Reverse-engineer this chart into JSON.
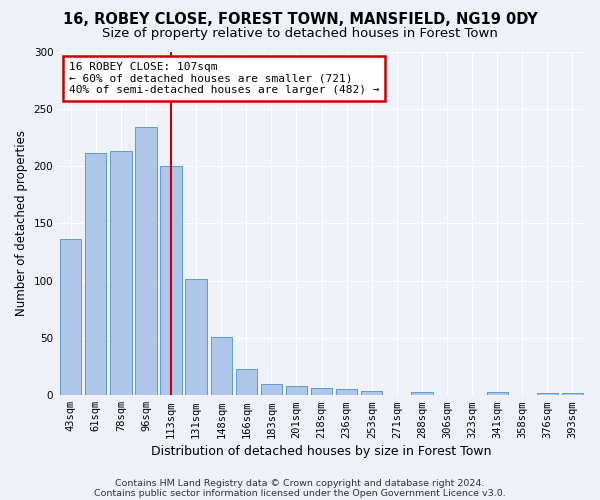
{
  "title1": "16, ROBEY CLOSE, FOREST TOWN, MANSFIELD, NG19 0DY",
  "title2": "Size of property relative to detached houses in Forest Town",
  "xlabel": "Distribution of detached houses by size in Forest Town",
  "ylabel": "Number of detached properties",
  "footnote1": "Contains HM Land Registry data © Crown copyright and database right 2024.",
  "footnote2": "Contains public sector information licensed under the Open Government Licence v3.0.",
  "categories": [
    "43sqm",
    "61sqm",
    "78sqm",
    "96sqm",
    "113sqm",
    "131sqm",
    "148sqm",
    "166sqm",
    "183sqm",
    "201sqm",
    "218sqm",
    "236sqm",
    "253sqm",
    "271sqm",
    "288sqm",
    "306sqm",
    "323sqm",
    "341sqm",
    "358sqm",
    "376sqm",
    "393sqm"
  ],
  "values": [
    136,
    211,
    213,
    234,
    200,
    101,
    51,
    23,
    10,
    8,
    6,
    5,
    4,
    0,
    3,
    0,
    0,
    3,
    0,
    2,
    2
  ],
  "bar_color": "#aec6e8",
  "bar_edge_color": "#5b9bd5",
  "red_line_index": 4,
  "annotation_line1": "16 ROBEY CLOSE: 107sqm",
  "annotation_line2": "← 60% of detached houses are smaller (721)",
  "annotation_line3": "40% of semi-detached houses are larger (482) →",
  "annotation_box_color": "#ffffff",
  "annotation_box_edge": "#cc0000",
  "ylim": [
    0,
    300
  ],
  "yticks": [
    0,
    50,
    100,
    150,
    200,
    250,
    300
  ],
  "background_color": "#eef2f8",
  "grid_color": "#ffffff",
  "title1_fontsize": 10.5,
  "title2_fontsize": 9.5,
  "xlabel_fontsize": 9,
  "ylabel_fontsize": 8.5,
  "tick_fontsize": 7.5,
  "annot_fontsize": 8,
  "footnote_fontsize": 6.8
}
